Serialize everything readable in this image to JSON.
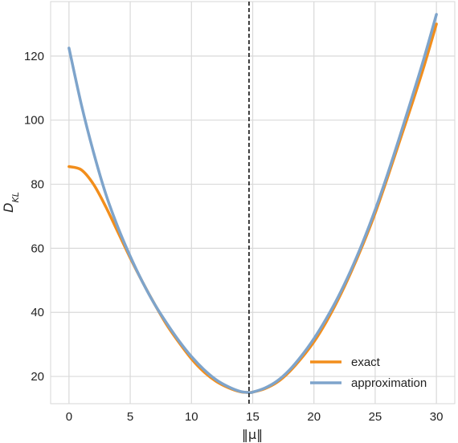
{
  "chart_data": {
    "type": "line",
    "xlabel": "‖μ‖",
    "ylabel": "D_KL",
    "ylabel_main": "D",
    "ylabel_sub": "KL",
    "xlim": [
      -1.5,
      31.5
    ],
    "ylim": [
      11.5,
      137
    ],
    "xticks": [
      0,
      5,
      10,
      15,
      20,
      25,
      30
    ],
    "yticks": [
      20,
      40,
      60,
      80,
      100,
      120
    ],
    "xtick_labels": [
      "0",
      "5",
      "10",
      "15",
      "20",
      "25",
      "30"
    ],
    "ytick_labels": [
      "20",
      "40",
      "60",
      "80",
      "100",
      "120"
    ],
    "grid": true,
    "legend_position": "lower-right",
    "vline": {
      "x": 14.7,
      "style": "dashed",
      "color": "#000000"
    },
    "series": [
      {
        "name": "exact",
        "color": "#f28e1c",
        "x": [
          0,
          1,
          2,
          3,
          4,
          5,
          6,
          7,
          8,
          9,
          10,
          11,
          12,
          13,
          14,
          14.7,
          15,
          16,
          17,
          18,
          19,
          20,
          21,
          22,
          23,
          24,
          25,
          26,
          27,
          28,
          29,
          30
        ],
        "y": [
          85.5,
          84.5,
          80,
          73,
          65,
          57,
          49.5,
          42.5,
          36,
          30.5,
          25.5,
          21.5,
          18.5,
          16.5,
          15.2,
          15,
          15.1,
          16.2,
          18.2,
          21.5,
          25.8,
          30.8,
          37,
          44.2,
          52.3,
          61.2,
          71,
          82,
          93.5,
          105,
          117,
          130
        ]
      },
      {
        "name": "approximation",
        "color": "#7ea4cb",
        "x": [
          0,
          1,
          2,
          3,
          4,
          5,
          6,
          7,
          8,
          9,
          10,
          11,
          12,
          13,
          14,
          14.7,
          15,
          16,
          17,
          18,
          19,
          20,
          21,
          22,
          23,
          24,
          25,
          26,
          27,
          28,
          29,
          30
        ],
        "y": [
          122.5,
          105,
          90,
          77,
          66.5,
          57.5,
          49.5,
          42.5,
          36.5,
          31,
          26.2,
          22.2,
          19,
          16.8,
          15.3,
          15,
          15.1,
          16.4,
          18.6,
          22,
          26.5,
          31.8,
          38,
          45,
          53,
          62,
          72,
          83,
          94.8,
          107,
          119.5,
          133
        ]
      }
    ]
  }
}
